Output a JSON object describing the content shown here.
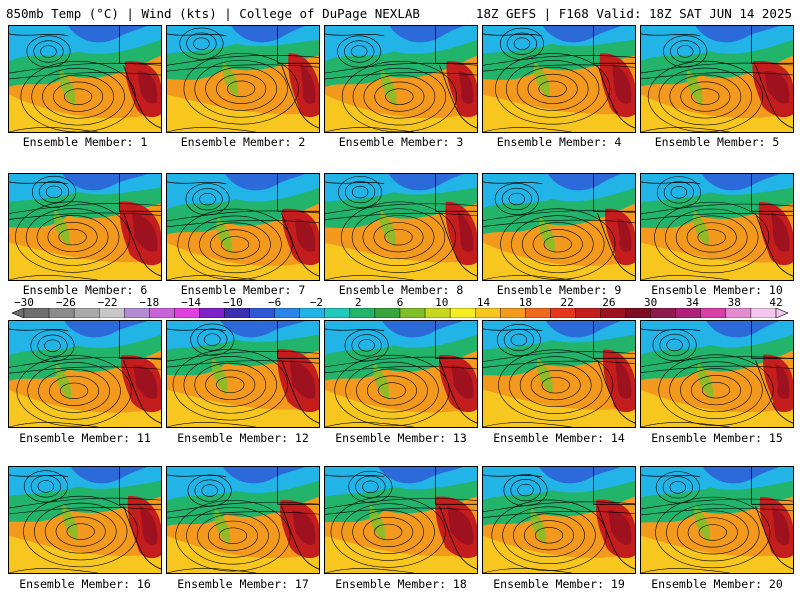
{
  "header": {
    "left": "850mb Temp (°C) | Wind (kts) | College of DuPage NEXLAB",
    "right": "18Z GEFS | F168 Valid: 18Z SAT JUN 14 2025"
  },
  "colorbar": {
    "labels": [
      "−30",
      "−26",
      "−22",
      "−18",
      "−14",
      "−10",
      "−6",
      "−2",
      "2",
      "6",
      "10",
      "14",
      "18",
      "22",
      "26",
      "30",
      "34",
      "38",
      "42"
    ],
    "colors": [
      "#6e6e6e",
      "#8c8c8c",
      "#a9a9a9",
      "#c8c8c8",
      "#b48cd2",
      "#c864d8",
      "#e040e0",
      "#8020c8",
      "#3a2fb0",
      "#2f57d6",
      "#2a86e8",
      "#22b4e6",
      "#21c9b8",
      "#22b46a",
      "#3aa53a",
      "#7fbf2a",
      "#c8d81e",
      "#f4ee22",
      "#f7c71f",
      "#f49a1e",
      "#ef6a1c",
      "#e4371c",
      "#c41d1e",
      "#9e1220",
      "#7d0e22",
      "#8e1b4c",
      "#b0207a",
      "#d840a8",
      "#e68ad2",
      "#f2c8ee"
    ],
    "min": -30,
    "max": 42
  },
  "members": [
    {
      "label": "Ensemble Member: 1"
    },
    {
      "label": "Ensemble Member: 2"
    },
    {
      "label": "Ensemble Member: 3"
    },
    {
      "label": "Ensemble Member: 4"
    },
    {
      "label": "Ensemble Member: 5"
    },
    {
      "label": "Ensemble Member: 6"
    },
    {
      "label": "Ensemble Member: 7"
    },
    {
      "label": "Ensemble Member: 8"
    },
    {
      "label": "Ensemble Member: 9"
    },
    {
      "label": "Ensemble Member: 10"
    },
    {
      "label": "Ensemble Member: 11"
    },
    {
      "label": "Ensemble Member: 12"
    },
    {
      "label": "Ensemble Member: 13"
    },
    {
      "label": "Ensemble Member: 14"
    },
    {
      "label": "Ensemble Member: 15"
    },
    {
      "label": "Ensemble Member: 16"
    },
    {
      "label": "Ensemble Member: 17"
    },
    {
      "label": "Ensemble Member: 18"
    },
    {
      "label": "Ensemble Member: 19"
    },
    {
      "label": "Ensemble Member: 20"
    }
  ]
}
